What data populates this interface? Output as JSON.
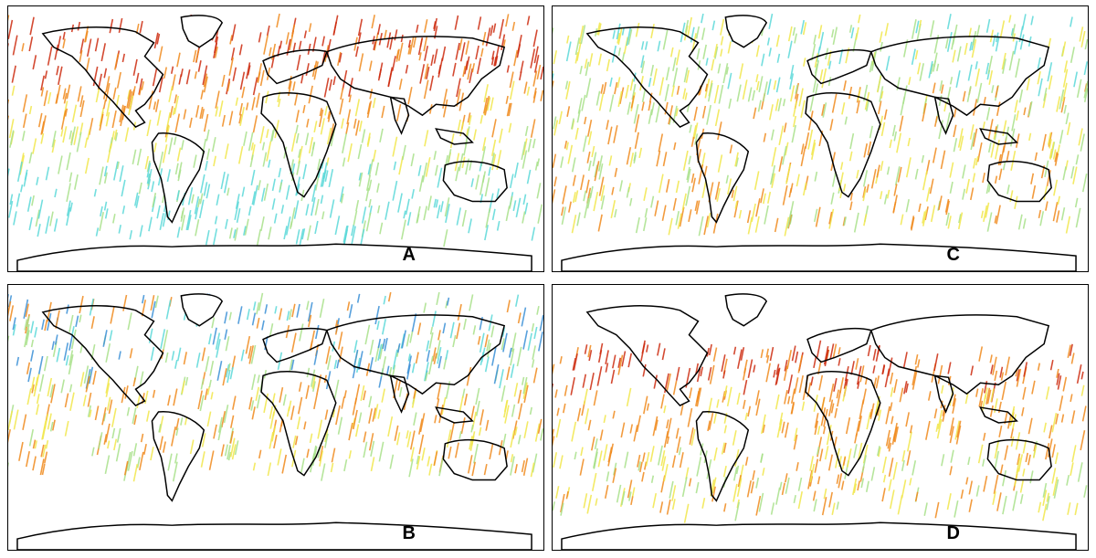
{
  "panels": [
    {
      "id": "A",
      "label": "A",
      "dominant": "warm-north"
    },
    {
      "id": "B",
      "label": "B",
      "dominant": "cool-north"
    },
    {
      "id": "C",
      "label": "C",
      "dominant": "mild"
    },
    {
      "id": "D",
      "label": "D",
      "dominant": "hot-tropics"
    }
  ],
  "colors": {
    "red": "#cc2a0e",
    "orange": "#f08a1c",
    "yellow": "#f1e64a",
    "lightgreen": "#a8e08a",
    "cyan": "#5ad8d8",
    "blue": "#3a8fd6",
    "coast": "#000000",
    "frame": "#000000"
  }
}
